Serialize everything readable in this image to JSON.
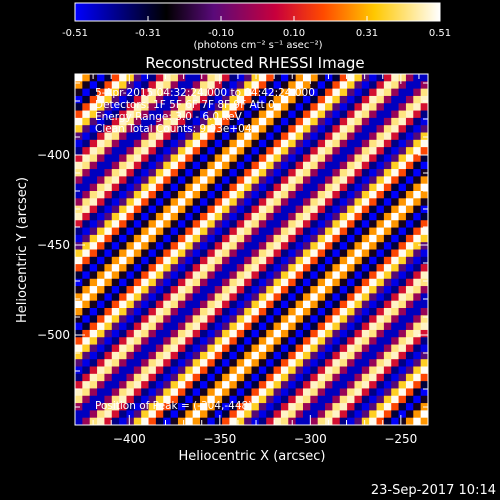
{
  "chart_data": {
    "type": "heatmap",
    "title": "Reconstructed RHESSI Image",
    "xlabel": "Heliocentric X (arcsec)",
    "ylabel": "Heliocentric Y (arcsec)",
    "xlim": [
      -430,
      -235
    ],
    "ylim": [
      -550,
      -355
    ],
    "xticks": [
      -400,
      -350,
      -300,
      -250
    ],
    "yticks": [
      -400,
      -450,
      -500
    ],
    "colorbar": {
      "min": -0.51,
      "max": 0.51,
      "ticks": [
        "-0.51",
        "-0.31",
        "-0.10",
        "0.10",
        "0.31",
        "0.51"
      ],
      "label": "(photons cm⁻² s⁻¹ asec⁻²)"
    },
    "pattern": {
      "grid_cells": 48,
      "description_values": "diagonal fringe pattern",
      "period_cells": 6.2,
      "amplitude": 0.51
    },
    "annotations": {
      "line1": "5-Apr-2015 04:32:24.000 to 04:42:24.000",
      "line2": "Detectors: 1F 5F 6F 7F 8F 9F Att 0",
      "line3": "Energy Range: 3.0 - 6.0 keV",
      "line4": "Clean   Total Counts: 9.93e+04",
      "peak": "Position of Peak = (-304,-448)"
    },
    "timestamp": "23-Sep-2017 10:14"
  }
}
